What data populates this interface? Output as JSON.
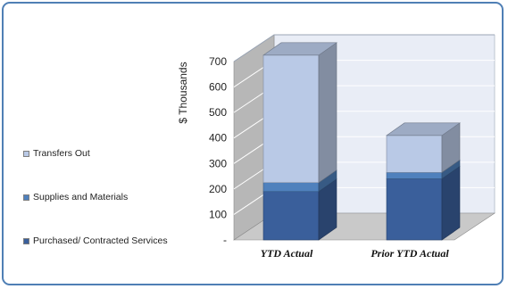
{
  "chart_data": {
    "type": "bar",
    "stacked": true,
    "three_d": true,
    "categories": [
      "YTD Actual",
      "Prior YTD Actual"
    ],
    "series": [
      {
        "name": "Purchased/ Contracted Services",
        "values": [
          190,
          240
        ],
        "color": "#3a5f9b"
      },
      {
        "name": "Supplies and Materials",
        "values": [
          35,
          25
        ],
        "color": "#4f81bd"
      },
      {
        "name": "Transfers Out",
        "values": [
          500,
          145
        ],
        "color": "#b9c9e6"
      }
    ],
    "ylabel": "$ Thousands",
    "ylim": [
      0,
      700
    ],
    "yticks": [
      0,
      100,
      200,
      300,
      400,
      500,
      600,
      700
    ],
    "ytick_labels": [
      "-",
      "100",
      "200",
      "300",
      "400",
      "500",
      "600",
      "700"
    ],
    "grid": true,
    "legend_position": "left"
  },
  "colors": {
    "frame_border": "#4f7fb5",
    "wall": "#e9edf6",
    "floor": "#c9c9c9",
    "side_wall": "#b7b7b7",
    "gridline": "#ffffff"
  }
}
